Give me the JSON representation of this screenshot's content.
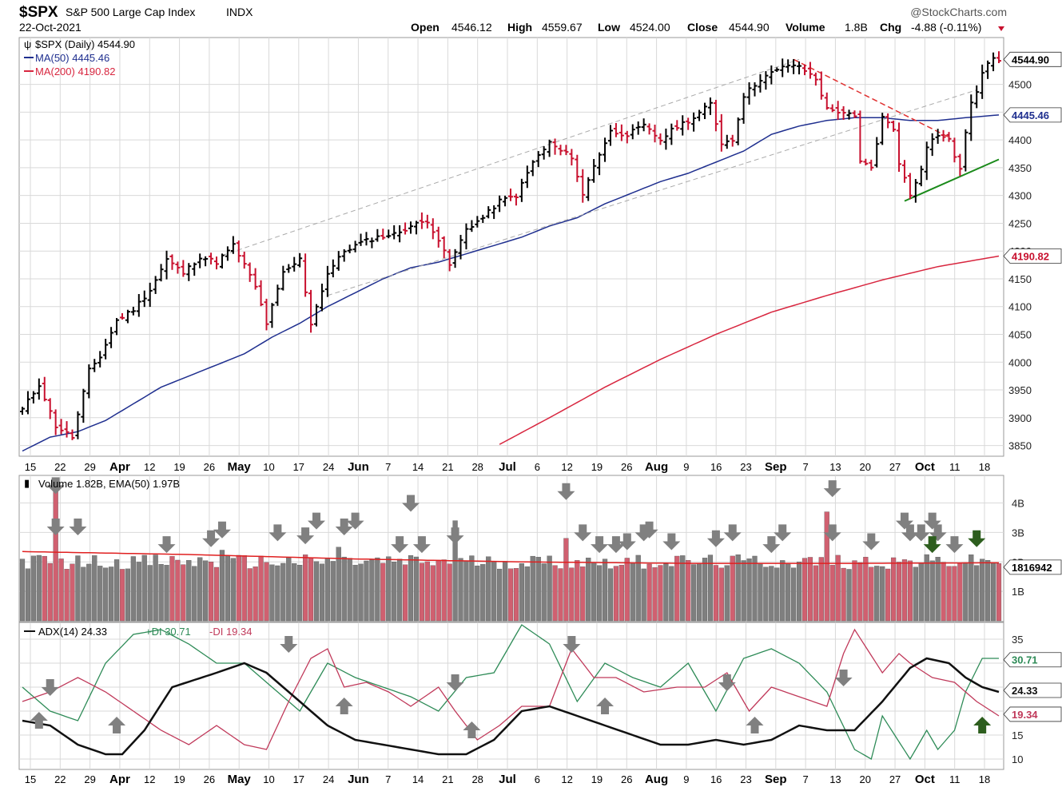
{
  "header": {
    "symbol": "$SPX",
    "name": "S&P 500 Large Cap Index",
    "exchange": "INDX",
    "date": "22-Oct-2021",
    "watermark": "@StockCharts.com",
    "open_label": "Open",
    "open": "4546.12",
    "high_label": "High",
    "high": "4559.67",
    "low_label": "Low",
    "low": "4524.00",
    "close_label": "Close",
    "close": "4544.90",
    "volume_label": "Volume",
    "volume": "1.8B",
    "chg_label": "Chg",
    "chg": "-4.88 (-0.11%)"
  },
  "colors": {
    "up": "#000000",
    "down": "#c8102e",
    "ma50": "#1f2f8f",
    "ma200": "#d8263f",
    "vol_up": "#7f7f7f",
    "vol_down": "#d06070",
    "adx": "#111111",
    "plus_di": "#2e8b57",
    "minus_di": "#c0395a",
    "arrow_gray": "#808080",
    "arrow_green": "#2d5e1e",
    "grid": "#d9d9d9",
    "resistance": "#e03030",
    "support": "#1a8a1a",
    "channel": "#aaaaaa"
  },
  "chart_data": [
    {
      "type": "ohlc",
      "legend": {
        "price": "$SPX (Daily) 4544.90",
        "ma50": "MA(50) 4445.46",
        "ma200": "MA(200) 4190.82"
      },
      "y_ticks": [
        3850,
        3900,
        3950,
        4000,
        4050,
        4100,
        4150,
        4200,
        4250,
        4300,
        4350,
        4400,
        4450,
        4500
      ],
      "ylim": [
        3835,
        4580
      ],
      "x_labels": [
        "15",
        "22",
        "29",
        "Apr",
        "12",
        "19",
        "26",
        "May",
        "10",
        "17",
        "24",
        "Jun",
        "7",
        "14",
        "21",
        "28",
        "Jul",
        "6",
        "12",
        "19",
        "26",
        "Aug",
        "9",
        "16",
        "23",
        "Sep",
        "7",
        "13",
        "20",
        "27",
        "Oct",
        "11",
        "18"
      ],
      "close_anchors": [
        [
          0,
          3915
        ],
        [
          3,
          3960
        ],
        [
          6,
          3885
        ],
        [
          9,
          3865
        ],
        [
          12,
          3985
        ],
        [
          14,
          4010
        ],
        [
          17,
          4075
        ],
        [
          20,
          4095
        ],
        [
          23,
          4130
        ],
        [
          26,
          4185
        ],
        [
          29,
          4160
        ],
        [
          32,
          4190
        ],
        [
          35,
          4180
        ],
        [
          38,
          4210
        ],
        [
          40,
          4175
        ],
        [
          42,
          4135
        ],
        [
          44,
          4070
        ],
        [
          47,
          4160
        ],
        [
          50,
          4185
        ],
        [
          52,
          4070
        ],
        [
          55,
          4160
        ],
        [
          58,
          4200
        ],
        [
          61,
          4215
        ],
        [
          64,
          4225
        ],
        [
          67,
          4230
        ],
        [
          70,
          4245
        ],
        [
          73,
          4255
        ],
        [
          75,
          4220
        ],
        [
          77,
          4175
        ],
        [
          80,
          4240
        ],
        [
          83,
          4260
        ],
        [
          86,
          4290
        ],
        [
          89,
          4300
        ],
        [
          92,
          4360
        ],
        [
          95,
          4395
        ],
        [
          97,
          4380
        ],
        [
          99,
          4370
        ],
        [
          101,
          4300
        ],
        [
          103,
          4355
        ],
        [
          106,
          4415
        ],
        [
          109,
          4410
        ],
        [
          112,
          4425
        ],
        [
          115,
          4400
        ],
        [
          118,
          4425
        ],
        [
          121,
          4440
        ],
        [
          124,
          4465
        ],
        [
          126,
          4395
        ],
        [
          128,
          4400
        ],
        [
          130,
          4480
        ],
        [
          133,
          4510
        ],
        [
          136,
          4525
        ],
        [
          138,
          4535
        ],
        [
          139,
          4535
        ],
        [
          141,
          4525
        ],
        [
          143,
          4510
        ],
        [
          145,
          4455
        ],
        [
          148,
          4450
        ],
        [
          150,
          4440
        ],
        [
          151,
          4360
        ],
        [
          153,
          4350
        ],
        [
          155,
          4440
        ],
        [
          157,
          4420
        ],
        [
          158,
          4360
        ],
        [
          160,
          4300
        ],
        [
          162,
          4350
        ],
        [
          163,
          4390
        ],
        [
          165,
          4410
        ],
        [
          167,
          4400
        ],
        [
          168,
          4370
        ],
        [
          169,
          4350
        ],
        [
          170,
          4410
        ],
        [
          171,
          4470
        ],
        [
          172,
          4485
        ],
        [
          173,
          4520
        ],
        [
          174,
          4535
        ],
        [
          175,
          4550
        ],
        [
          176,
          4545
        ]
      ],
      "ma50_anchors": [
        [
          0,
          3840
        ],
        [
          5,
          3865
        ],
        [
          10,
          3875
        ],
        [
          15,
          3895
        ],
        [
          20,
          3925
        ],
        [
          25,
          3955
        ],
        [
          30,
          3975
        ],
        [
          35,
          3995
        ],
        [
          40,
          4015
        ],
        [
          45,
          4045
        ],
        [
          50,
          4070
        ],
        [
          55,
          4100
        ],
        [
          60,
          4125
        ],
        [
          65,
          4150
        ],
        [
          70,
          4170
        ],
        [
          75,
          4180
        ],
        [
          80,
          4195
        ],
        [
          85,
          4210
        ],
        [
          90,
          4225
        ],
        [
          95,
          4245
        ],
        [
          100,
          4260
        ],
        [
          105,
          4285
        ],
        [
          110,
          4305
        ],
        [
          115,
          4325
        ],
        [
          120,
          4340
        ],
        [
          125,
          4360
        ],
        [
          130,
          4380
        ],
        [
          135,
          4410
        ],
        [
          140,
          4425
        ],
        [
          145,
          4435
        ],
        [
          150,
          4440
        ],
        [
          155,
          4440
        ],
        [
          160,
          4435
        ],
        [
          165,
          4435
        ],
        [
          170,
          4440
        ],
        [
          176,
          4445
        ]
      ],
      "ma200_anchors": [
        [
          86,
          3852
        ],
        [
          95,
          3900
        ],
        [
          105,
          3955
        ],
        [
          115,
          4005
        ],
        [
          125,
          4050
        ],
        [
          135,
          4090
        ],
        [
          145,
          4120
        ],
        [
          155,
          4148
        ],
        [
          165,
          4172
        ],
        [
          176,
          4191
        ]
      ],
      "price_tag_close": "4544.90",
      "price_tag_ma50": "4445.46",
      "price_tag_ma200": "4190.82"
    },
    {
      "type": "bar",
      "legend": "Volume 1.82B, EMA(50) 1.97B",
      "y_ticks": [
        "1B",
        "2B",
        "3B",
        "4B"
      ],
      "ylim": [
        0,
        4.8
      ],
      "spike_anchors": [
        [
          6,
          4.4
        ],
        [
          36,
          2.4
        ],
        [
          57,
          2.5
        ],
        [
          78,
          3.4
        ],
        [
          98,
          2.8
        ],
        [
          145,
          3.7
        ]
      ],
      "base_level": 2.0,
      "ema_anchors": [
        [
          0,
          2.35
        ],
        [
          30,
          2.25
        ],
        [
          60,
          2.1
        ],
        [
          90,
          2.0
        ],
        [
          120,
          1.95
        ],
        [
          150,
          1.95
        ],
        [
          176,
          1.97
        ]
      ],
      "value_tag": "1816942"
    },
    {
      "type": "line",
      "legend": {
        "adx": "ADX(14) 24.33",
        "plus_di": "+DI 30.71",
        "minus_di": "-DI 19.34"
      },
      "y_ticks": [
        10,
        15,
        20,
        25,
        30,
        35
      ],
      "ylim": [
        8,
        38
      ],
      "adx_anchors": [
        [
          0,
          18
        ],
        [
          5,
          17
        ],
        [
          10,
          13
        ],
        [
          15,
          11
        ],
        [
          18,
          11
        ],
        [
          22,
          16
        ],
        [
          27,
          25
        ],
        [
          35,
          28
        ],
        [
          40,
          30
        ],
        [
          44,
          28
        ],
        [
          50,
          22
        ],
        [
          55,
          17
        ],
        [
          60,
          14
        ],
        [
          65,
          13
        ],
        [
          70,
          12
        ],
        [
          75,
          11
        ],
        [
          80,
          11
        ],
        [
          85,
          14
        ],
        [
          90,
          20
        ],
        [
          95,
          21
        ],
        [
          100,
          19
        ],
        [
          105,
          17
        ],
        [
          110,
          15
        ],
        [
          115,
          13
        ],
        [
          120,
          13
        ],
        [
          125,
          14
        ],
        [
          130,
          13
        ],
        [
          135,
          14
        ],
        [
          140,
          17
        ],
        [
          145,
          16
        ],
        [
          150,
          16
        ],
        [
          155,
          22
        ],
        [
          160,
          29
        ],
        [
          163,
          31
        ],
        [
          167,
          30
        ],
        [
          170,
          27
        ],
        [
          173,
          25
        ],
        [
          176,
          24
        ]
      ],
      "plus_di_anchors": [
        [
          0,
          25
        ],
        [
          5,
          20
        ],
        [
          10,
          18
        ],
        [
          15,
          30
        ],
        [
          20,
          36
        ],
        [
          25,
          37
        ],
        [
          30,
          34
        ],
        [
          35,
          30
        ],
        [
          40,
          30
        ],
        [
          45,
          25
        ],
        [
          50,
          20
        ],
        [
          55,
          30
        ],
        [
          60,
          27
        ],
        [
          65,
          25
        ],
        [
          70,
          23
        ],
        [
          75,
          20
        ],
        [
          80,
          27
        ],
        [
          85,
          28
        ],
        [
          90,
          38
        ],
        [
          95,
          34
        ],
        [
          100,
          22
        ],
        [
          105,
          30
        ],
        [
          110,
          27
        ],
        [
          115,
          25
        ],
        [
          120,
          30
        ],
        [
          125,
          20
        ],
        [
          130,
          31
        ],
        [
          135,
          33
        ],
        [
          140,
          30
        ],
        [
          145,
          24
        ],
        [
          150,
          12
        ],
        [
          153,
          10
        ],
        [
          155,
          19
        ],
        [
          160,
          10
        ],
        [
          163,
          16
        ],
        [
          165,
          12
        ],
        [
          168,
          16
        ],
        [
          170,
          24
        ],
        [
          173,
          31
        ],
        [
          176,
          31
        ]
      ],
      "minus_di_anchors": [
        [
          0,
          22
        ],
        [
          5,
          24
        ],
        [
          10,
          27
        ],
        [
          15,
          24
        ],
        [
          20,
          20
        ],
        [
          25,
          16
        ],
        [
          30,
          13
        ],
        [
          35,
          17
        ],
        [
          40,
          13
        ],
        [
          44,
          12
        ],
        [
          48,
          22
        ],
        [
          52,
          31
        ],
        [
          55,
          33
        ],
        [
          58,
          25
        ],
        [
          62,
          26
        ],
        [
          66,
          24
        ],
        [
          70,
          21
        ],
        [
          75,
          25
        ],
        [
          78,
          20
        ],
        [
          82,
          14
        ],
        [
          86,
          17
        ],
        [
          90,
          21
        ],
        [
          95,
          21
        ],
        [
          99,
          33
        ],
        [
          103,
          27
        ],
        [
          107,
          27
        ],
        [
          112,
          24
        ],
        [
          118,
          25
        ],
        [
          123,
          25
        ],
        [
          127,
          28
        ],
        [
          131,
          20
        ],
        [
          135,
          25
        ],
        [
          140,
          23
        ],
        [
          145,
          21
        ],
        [
          148,
          32
        ],
        [
          150,
          37
        ],
        [
          155,
          28
        ],
        [
          158,
          32
        ],
        [
          160,
          30
        ],
        [
          164,
          27
        ],
        [
          168,
          26
        ],
        [
          172,
          22
        ],
        [
          176,
          19
        ]
      ],
      "tags": [
        "30.71",
        "24.33",
        "19.34"
      ]
    }
  ]
}
